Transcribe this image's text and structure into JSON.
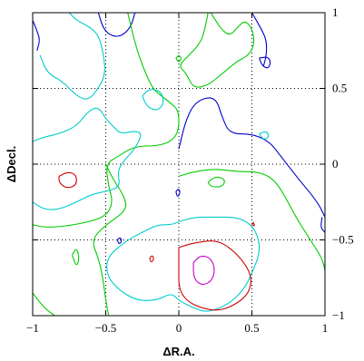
{
  "chart_data": {
    "type": "contour",
    "xlabel": "ΔR.A.",
    "ylabel": "ΔDecl.",
    "xlim": [
      -1,
      1
    ],
    "ylim": [
      -1,
      1
    ],
    "x_ticks": [
      {
        "value": -1,
        "label": "−1"
      },
      {
        "value": -0.5,
        "label": "−0.5"
      },
      {
        "value": 0,
        "label": "0"
      },
      {
        "value": 0.5,
        "label": "0.5"
      },
      {
        "value": 1,
        "label": "1"
      }
    ],
    "y_ticks": [
      {
        "value": -1,
        "label": "−1"
      },
      {
        "value": -0.5,
        "label": "−0.5"
      },
      {
        "value": 0,
        "label": "0"
      },
      {
        "value": 0.5,
        "label": "0.5"
      },
      {
        "value": 1,
        "label": "1"
      }
    ],
    "grid": "dotted at ±0.5 and 0",
    "level_colors": [
      "#0000cc",
      "#00cc00",
      "#00cccc",
      "#cc0000",
      "#cc00cc"
    ],
    "contours": [
      {
        "color": "#0000cc",
        "points": [
          [
            -1,
            0.95
          ],
          [
            -0.97,
            0.88
          ],
          [
            -0.95,
            0.82
          ],
          [
            -0.97,
            0.75
          ]
        ]
      },
      {
        "color": "#0000cc",
        "points": [
          [
            -0.55,
            1
          ],
          [
            -0.52,
            0.9
          ],
          [
            -0.47,
            0.85
          ],
          [
            -0.4,
            0.84
          ],
          [
            -0.33,
            0.9
          ],
          [
            -0.3,
            1
          ]
        ]
      },
      {
        "color": "#0000cc",
        "points": [
          [
            0.5,
            1
          ],
          [
            0.56,
            0.9
          ],
          [
            0.6,
            0.82
          ],
          [
            0.6,
            0.72
          ],
          [
            0.58,
            0.65
          ]
        ]
      },
      {
        "color": "#0000cc",
        "points": [
          [
            0.55,
            0.7
          ],
          [
            0.57,
            0.65
          ],
          [
            0.61,
            0.63
          ],
          [
            0.63,
            0.67
          ],
          [
            0.61,
            0.71
          ],
          [
            0.55,
            0.7
          ]
        ]
      },
      {
        "color": "#0000cc",
        "points": [
          [
            0,
            0.1
          ],
          [
            0.05,
            0.3
          ],
          [
            0.12,
            0.42
          ],
          [
            0.25,
            0.45
          ],
          [
            0.3,
            0.3
          ],
          [
            0.35,
            0.2
          ],
          [
            0.5,
            0.2
          ],
          [
            0.62,
            0.15
          ],
          [
            0.7,
            0.05
          ],
          [
            0.82,
            -0.1
          ],
          [
            0.95,
            -0.25
          ],
          [
            1,
            -0.35
          ]
        ]
      },
      {
        "color": "#0000cc",
        "points": [
          [
            -0.02,
            -0.18
          ],
          [
            0,
            -0.16
          ],
          [
            0.01,
            -0.19
          ],
          [
            -0.01,
            -0.22
          ],
          [
            -0.02,
            -0.18
          ]
        ]
      },
      {
        "color": "#0000cc",
        "points": [
          [
            -0.42,
            -0.5
          ],
          [
            -0.4,
            -0.48
          ],
          [
            -0.39,
            -0.51
          ],
          [
            -0.41,
            -0.53
          ],
          [
            -0.42,
            -0.5
          ]
        ]
      },
      {
        "color": "#0000cc",
        "points": [
          [
            0.98,
            -0.35
          ],
          [
            0.97,
            -0.42
          ],
          [
            1,
            -0.45
          ]
        ]
      },
      {
        "color": "#00cc00",
        "points": [
          [
            -0.35,
            1
          ],
          [
            -0.3,
            0.8
          ],
          [
            -0.25,
            0.65
          ],
          [
            -0.18,
            0.5
          ],
          [
            -0.12,
            0.45
          ],
          [
            -0.05,
            0.4
          ],
          [
            0,
            0.35
          ],
          [
            0,
            0.22
          ],
          [
            -0.05,
            0.15
          ],
          [
            -0.15,
            0.12
          ],
          [
            -0.3,
            0.12
          ],
          [
            -0.42,
            0.05
          ],
          [
            -0.5,
            0
          ],
          [
            -0.48,
            -0.15
          ],
          [
            -0.45,
            -0.25
          ],
          [
            -0.5,
            -0.35
          ],
          [
            -0.7,
            -0.4
          ],
          [
            -0.9,
            -0.42
          ],
          [
            -1,
            -0.4
          ]
        ]
      },
      {
        "color": "#00cc00",
        "points": [
          [
            0.2,
            1
          ],
          [
            0.18,
            0.9
          ],
          [
            0.15,
            0.8
          ],
          [
            0.05,
            0.7
          ],
          [
            0,
            0.65
          ],
          [
            0.05,
            0.6
          ],
          [
            0.1,
            0.5
          ],
          [
            0.2,
            0.52
          ],
          [
            0.3,
            0.6
          ],
          [
            0.4,
            0.68
          ],
          [
            0.48,
            0.72
          ],
          [
            0.52,
            0.8
          ],
          [
            0.5,
            0.9
          ],
          [
            0.45,
            0.95
          ],
          [
            0.4,
            0.9
          ],
          [
            0.35,
            0.85
          ],
          [
            0.3,
            0.88
          ],
          [
            0.25,
            0.95
          ],
          [
            0.22,
            1
          ]
        ]
      },
      {
        "color": "#00cc00",
        "points": [
          [
            -0.5,
            0
          ],
          [
            -0.45,
            -0.1
          ],
          [
            -0.38,
            -0.2
          ],
          [
            -0.35,
            -0.3
          ],
          [
            -0.5,
            -0.4
          ],
          [
            -0.6,
            -0.5
          ],
          [
            -0.55,
            -0.62
          ],
          [
            -0.52,
            -0.75
          ],
          [
            -0.5,
            -0.9
          ],
          [
            -0.48,
            -1
          ]
        ]
      },
      {
        "color": "#00cc00",
        "points": [
          [
            0,
            -0.08
          ],
          [
            0.1,
            -0.05
          ],
          [
            0.25,
            -0.03
          ],
          [
            0.4,
            -0.05
          ],
          [
            0.55,
            -0.05
          ],
          [
            0.65,
            -0.1
          ],
          [
            0.72,
            -0.2
          ],
          [
            0.8,
            -0.35
          ],
          [
            0.9,
            -0.5
          ],
          [
            0.98,
            -0.62
          ],
          [
            1,
            -0.7
          ]
        ]
      },
      {
        "color": "#00cc00",
        "points": [
          [
            0.2,
            -0.12
          ],
          [
            0.25,
            -0.08
          ],
          [
            0.32,
            -0.1
          ],
          [
            0.3,
            -0.15
          ],
          [
            0.22,
            -0.15
          ],
          [
            0.2,
            -0.12
          ]
        ]
      },
      {
        "color": "#00cc00",
        "points": [
          [
            -0.73,
            -0.6
          ],
          [
            -0.7,
            -0.55
          ],
          [
            -0.68,
            -0.62
          ],
          [
            -0.7,
            -0.68
          ],
          [
            -0.73,
            -0.6
          ]
        ]
      },
      {
        "color": "#00cc00",
        "points": [
          [
            -1,
            -0.85
          ],
          [
            -0.92,
            -0.95
          ],
          [
            -0.85,
            -1
          ]
        ]
      },
      {
        "color": "#00cc00",
        "points": [
          [
            -0.02,
            0.7
          ],
          [
            0,
            0.72
          ],
          [
            0.02,
            0.7
          ],
          [
            0,
            0.67
          ],
          [
            -0.02,
            0.7
          ]
        ]
      },
      {
        "color": "#00cccc",
        "points": [
          [
            -0.95,
            0.72
          ],
          [
            -0.9,
            0.6
          ],
          [
            -0.8,
            0.55
          ],
          [
            -0.7,
            0.45
          ],
          [
            -0.62,
            0.42
          ],
          [
            -0.55,
            0.5
          ],
          [
            -0.5,
            0.6
          ],
          [
            -0.52,
            0.75
          ],
          [
            -0.55,
            0.85
          ],
          [
            -0.6,
            0.9
          ],
          [
            -0.7,
            0.95
          ],
          [
            -0.75,
            1
          ]
        ]
      },
      {
        "color": "#00cccc",
        "points": [
          [
            -1,
            0.15
          ],
          [
            -0.92,
            0.18
          ],
          [
            -0.82,
            0.2
          ],
          [
            -0.7,
            0.25
          ],
          [
            -0.62,
            0.35
          ],
          [
            -0.55,
            0.38
          ],
          [
            -0.5,
            0.3
          ],
          [
            -0.45,
            0.25
          ],
          [
            -0.4,
            0.2
          ],
          [
            -0.3,
            0.22
          ],
          [
            -0.25,
            0.2
          ],
          [
            -0.3,
            0.1
          ],
          [
            -0.38,
            0.02
          ],
          [
            -0.42,
            -0.05
          ],
          [
            -0.4,
            -0.15
          ],
          [
            -0.5,
            -0.18
          ],
          [
            -0.6,
            -0.2
          ],
          [
            -0.7,
            -0.25
          ],
          [
            -0.82,
            -0.3
          ],
          [
            -0.92,
            -0.3
          ],
          [
            -1,
            -0.25
          ]
        ]
      },
      {
        "color": "#00cccc",
        "points": [
          [
            -0.25,
            0.45
          ],
          [
            -0.22,
            0.38
          ],
          [
            -0.15,
            0.35
          ],
          [
            -0.1,
            0.4
          ],
          [
            -0.12,
            0.48
          ],
          [
            -0.2,
            0.5
          ],
          [
            -0.25,
            0.45
          ]
        ]
      },
      {
        "color": "#00cccc",
        "points": [
          [
            0,
            -0.38
          ],
          [
            0.1,
            -0.35
          ],
          [
            0.25,
            -0.35
          ],
          [
            0.4,
            -0.35
          ],
          [
            0.5,
            -0.4
          ],
          [
            0.55,
            -0.5
          ],
          [
            0.55,
            -0.6
          ],
          [
            0.5,
            -0.72
          ],
          [
            0.45,
            -0.82
          ],
          [
            0.35,
            -0.92
          ],
          [
            0.2,
            -0.98
          ],
          [
            0.1,
            -0.95
          ],
          [
            0,
            -0.9
          ],
          [
            -0.05,
            -0.85
          ],
          [
            -0.15,
            -0.9
          ],
          [
            -0.3,
            -0.9
          ],
          [
            -0.45,
            -0.8
          ],
          [
            -0.5,
            -0.7
          ],
          [
            -0.48,
            -0.6
          ],
          [
            -0.35,
            -0.5
          ],
          [
            -0.25,
            -0.45
          ],
          [
            -0.15,
            -0.4
          ],
          [
            -0.05,
            -0.4
          ],
          [
            0,
            -0.38
          ]
        ]
      },
      {
        "color": "#00cccc",
        "points": [
          [
            0.55,
            0.2
          ],
          [
            0.6,
            0.22
          ],
          [
            0.62,
            0.18
          ],
          [
            0.58,
            0.16
          ],
          [
            0.55,
            0.2
          ]
        ]
      },
      {
        "color": "#cc0000",
        "points": [
          [
            -0.82,
            -0.08
          ],
          [
            -0.76,
            -0.05
          ],
          [
            -0.7,
            -0.07
          ],
          [
            -0.7,
            -0.14
          ],
          [
            -0.77,
            -0.16
          ],
          [
            -0.82,
            -0.12
          ],
          [
            -0.82,
            -0.08
          ]
        ]
      },
      {
        "color": "#cc0000",
        "points": [
          [
            0,
            -0.55
          ],
          [
            0.1,
            -0.52
          ],
          [
            0.25,
            -0.5
          ],
          [
            0.35,
            -0.55
          ],
          [
            0.45,
            -0.65
          ],
          [
            0.5,
            -0.75
          ],
          [
            0.48,
            -0.85
          ],
          [
            0.4,
            -0.92
          ],
          [
            0.28,
            -0.97
          ],
          [
            0.15,
            -0.95
          ],
          [
            0.05,
            -0.9
          ],
          [
            0,
            -0.82
          ],
          [
            0,
            -0.7
          ],
          [
            0,
            -0.55
          ]
        ]
      },
      {
        "color": "#cc0000",
        "points": [
          [
            -0.2,
            -0.62
          ],
          [
            -0.18,
            -0.6
          ],
          [
            -0.17,
            -0.63
          ],
          [
            -0.19,
            -0.65
          ],
          [
            -0.2,
            -0.62
          ]
        ]
      },
      {
        "color": "#cc0000",
        "points": [
          [
            0.5,
            -0.4
          ],
          [
            0.51,
            -0.38
          ],
          [
            0.52,
            -0.41
          ],
          [
            0.5,
            -0.4
          ]
        ]
      },
      {
        "color": "#cc00cc",
        "points": [
          [
            0.1,
            -0.65
          ],
          [
            0.15,
            -0.6
          ],
          [
            0.22,
            -0.62
          ],
          [
            0.25,
            -0.7
          ],
          [
            0.22,
            -0.78
          ],
          [
            0.15,
            -0.8
          ],
          [
            0.1,
            -0.75
          ],
          [
            0.1,
            -0.65
          ]
        ]
      }
    ]
  }
}
